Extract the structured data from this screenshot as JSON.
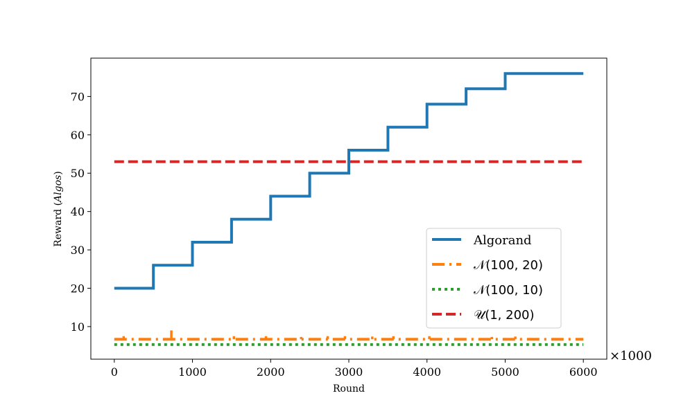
{
  "chart_data": {
    "type": "line",
    "title": "",
    "xlabel": "Round",
    "ylabel_prefix": "Reward (",
    "ylabel_italic": "Algos",
    "ylabel_suffix": ")",
    "x_multiplier_label": "×1000",
    "xlim": [
      -300,
      6300
    ],
    "ylim": [
      1.5,
      80
    ],
    "x_ticks": [
      0,
      1000,
      2000,
      3000,
      4000,
      5000,
      6000
    ],
    "y_ticks": [
      10,
      20,
      30,
      40,
      50,
      60,
      70
    ],
    "grid": false,
    "legend_position": "lower-right",
    "series": [
      {
        "name": "Algorand",
        "style": "solid",
        "color": "#1f77b4",
        "step": true,
        "x": [
          0,
          500,
          1000,
          1500,
          2000,
          2500,
          3000,
          3500,
          4000,
          4500,
          5000,
          6000
        ],
        "y": [
          20,
          26,
          32,
          38,
          44,
          50,
          56,
          62,
          68,
          72,
          76,
          76
        ]
      },
      {
        "name": "𝒩(100, 20)",
        "style": "dashdot",
        "color": "#ff7f0e",
        "x": [
          0,
          6000
        ],
        "y": [
          6.7,
          6.7
        ],
        "spikes": [
          {
            "x": 120,
            "y": 7.5
          },
          {
            "x": 730,
            "y": 9.0
          },
          {
            "x": 1530,
            "y": 7.5
          },
          {
            "x": 1940,
            "y": 7.5
          },
          {
            "x": 2390,
            "y": 7.3
          },
          {
            "x": 2730,
            "y": 7.5
          },
          {
            "x": 2950,
            "y": 7.5
          },
          {
            "x": 3300,
            "y": 7.4
          },
          {
            "x": 3570,
            "y": 7.5
          },
          {
            "x": 4030,
            "y": 7.5
          },
          {
            "x": 4830,
            "y": 7.3
          },
          {
            "x": 5130,
            "y": 7.4
          }
        ]
      },
      {
        "name": "𝒩(100, 10)",
        "style": "dotted",
        "color": "#2ca02c",
        "x": [
          0,
          6000
        ],
        "y": [
          5.3,
          5.3
        ]
      },
      {
        "name": "𝒰(1, 200)",
        "style": "dashed",
        "color": "#d62728",
        "x": [
          0,
          6000
        ],
        "y": [
          53,
          53
        ]
      }
    ]
  }
}
